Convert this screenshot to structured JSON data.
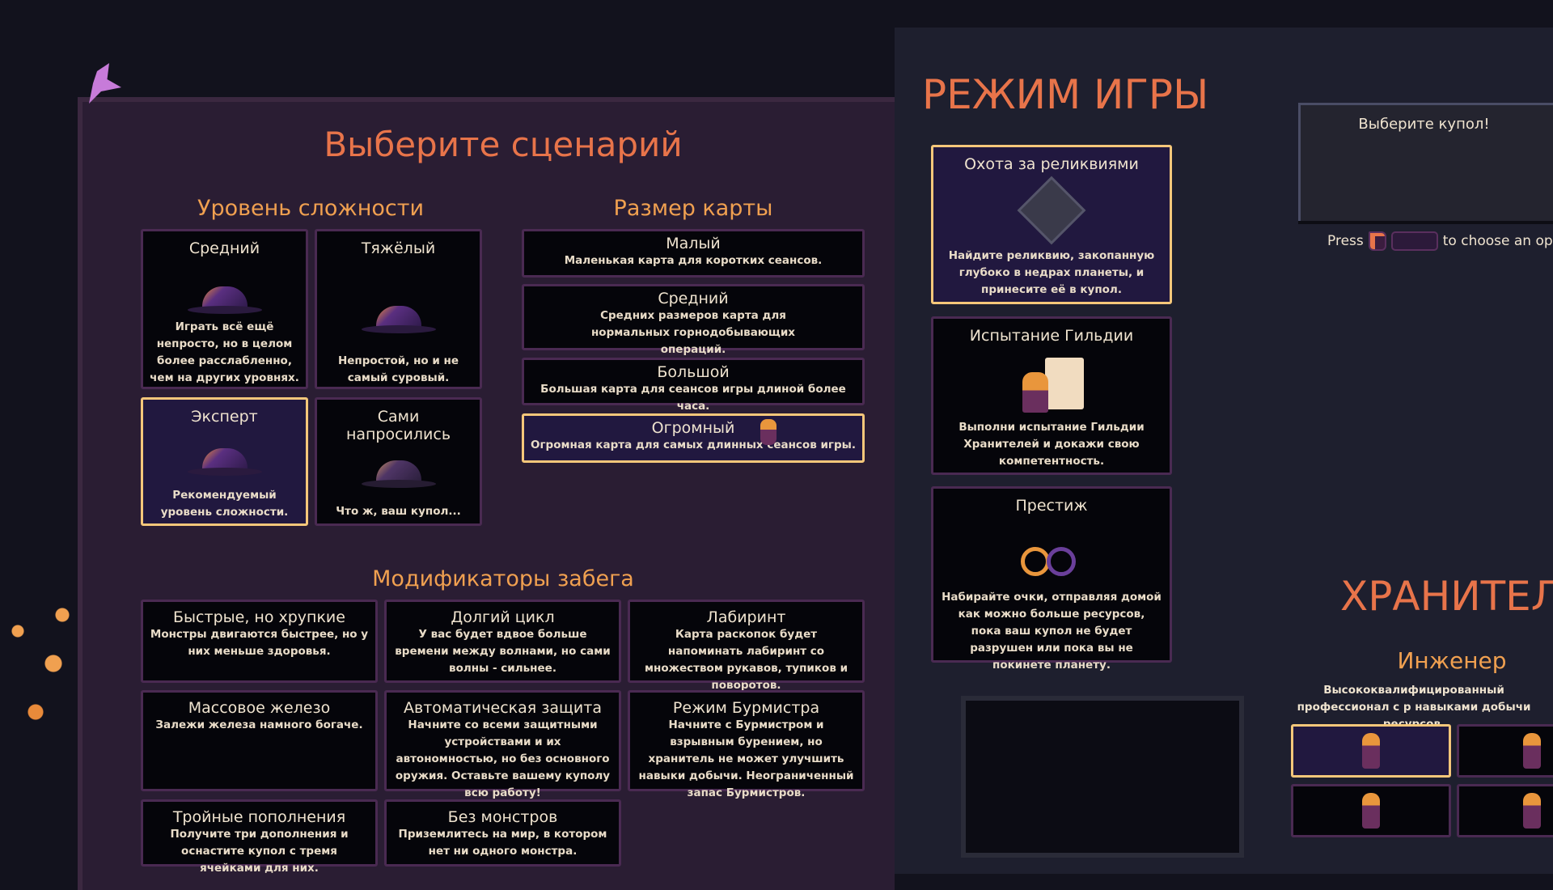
{
  "scenario": {
    "title": "Выберите сценарий",
    "difficulty": {
      "title": "Уровень сложности",
      "items": [
        {
          "name": "Средний",
          "desc": "Играть всё ещё непросто, но в целом более расслабленно, чем на других уровнях.",
          "selected": false
        },
        {
          "name": "Тяжёлый",
          "desc": "Непростой, но и не самый суровый.",
          "selected": false
        },
        {
          "name": "Эксперт",
          "desc": "Рекомендуемый уровень сложности.",
          "selected": true
        },
        {
          "name": "Сами напросились",
          "desc": "Что ж, ваш купол...",
          "selected": false
        }
      ]
    },
    "map_size": {
      "title": "Размер карты",
      "items": [
        {
          "name": "Малый",
          "desc": "Маленькая карта для коротких сеансов.",
          "selected": false
        },
        {
          "name": "Средний",
          "desc": "Средних размеров карта для нормальных горнодобывающих операций.",
          "selected": false
        },
        {
          "name": "Большой",
          "desc": "Большая карта для сеансов игры длиной более часа.",
          "selected": false
        },
        {
          "name": "Огромный",
          "desc": "Огромная карта для самых длинных сеансов игры.",
          "selected": true
        }
      ]
    },
    "modifiers": {
      "title": "Модификаторы забега",
      "items": [
        {
          "name": "Быстрые, но хрупкие",
          "desc": "Монстры двигаются быстрее, но у них меньше здоровья."
        },
        {
          "name": "Долгий цикл",
          "desc": "У вас будет вдвое больше времени между волнами, но сами волны - сильнее."
        },
        {
          "name": "Лабиринт",
          "desc": "Карта раскопок будет напоминать лабиринт со множеством рукавов, тупиков и поворотов."
        },
        {
          "name": "Массовое железо",
          "desc": "Залежи железа намного богаче."
        },
        {
          "name": "Автоматическая защита",
          "desc": "Начните со всеми защитными устройствами и их автономностью, но без основного оружия. Оставьте вашему куполу всю работу!"
        },
        {
          "name": "Режим Бурмистра",
          "desc": "Начните с Бурмистром и взрывным бурением, но хранитель не может улучшить навыки добычи. Неограниченный запас Бурмистров."
        },
        {
          "name": "Тройные пополнения",
          "desc": "Получите три дополнения и оснастите купол с тремя ячейками для них."
        },
        {
          "name": "Без монстров",
          "desc": "Приземлитесь на мир, в котором нет ни одного монстра."
        }
      ]
    }
  },
  "game_mode": {
    "title": "РЕЖИМ ИГРЫ",
    "items": [
      {
        "name": "Охота за реликвиями",
        "desc": "Найдите реликвию, закопанную глубоко в недрах планеты, и принесите её в купол.",
        "icon": "relic-icon",
        "selected": true
      },
      {
        "name": "Испытание Гильдии",
        "desc": "Выполни испытание Гильдии Хранителей и докажи свою компетентность.",
        "icon": "guild-scroll-icon",
        "selected": false
      },
      {
        "name": "Престиж",
        "desc": "Набирайте очки, отправляя домой как можно больше ресурсов, пока ваш купол не будет разрушен или пока вы не покинете планету.",
        "icon": "prestige-infinity-icon",
        "selected": false
      }
    ]
  },
  "dome": {
    "title": "Выберите купол!",
    "hint_press": "Press",
    "hint_rest": "to choose an optio"
  },
  "keepers": {
    "title": "ХРАНИТЕЛЬ",
    "selected_name": "Инженер",
    "selected_desc": "Высококвалифицированный профессионал с р навыками добычи ресурсов."
  },
  "colors": {
    "title": "#e8744a",
    "subtitle": "#f0a050",
    "selected_border": "#f5c77a",
    "card_border": "#4a2a52",
    "card_bg": "#05050a"
  }
}
